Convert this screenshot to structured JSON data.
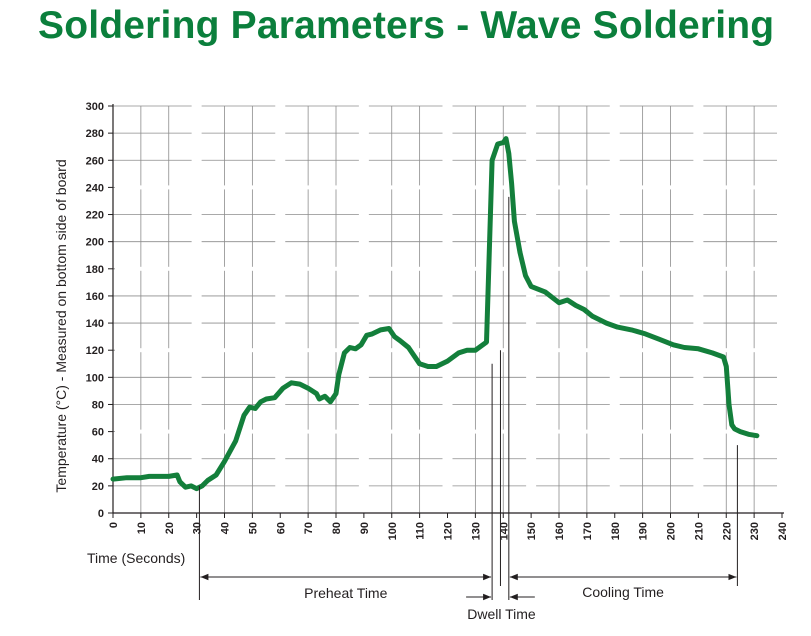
{
  "chart_data": {
    "type": "line",
    "title": "Soldering Parameters - Wave Soldering",
    "xlabel": "Time (Seconds)",
    "ylabel": "Temperature (°C) - Measured on bottom side of board",
    "xlim": [
      0,
      240
    ],
    "ylim": [
      0,
      300
    ],
    "x_ticks": [
      0,
      10,
      20,
      30,
      40,
      50,
      60,
      70,
      80,
      90,
      100,
      110,
      120,
      130,
      140,
      150,
      160,
      170,
      180,
      190,
      200,
      210,
      220,
      230,
      240
    ],
    "y_ticks": [
      0,
      20,
      40,
      60,
      80,
      100,
      120,
      140,
      160,
      180,
      200,
      220,
      240,
      260,
      280,
      300
    ],
    "grid": true,
    "series": [
      {
        "color": "#137f3b",
        "x": [
          0,
          5,
          10,
          13,
          16,
          20,
          23,
          24,
          26,
          28,
          30,
          32,
          34,
          37,
          40,
          44,
          47,
          49,
          51,
          53,
          55,
          58,
          61,
          64,
          67,
          70,
          73,
          74,
          76,
          78,
          80,
          81,
          83,
          85,
          87,
          89,
          91,
          93,
          96,
          99,
          101,
          103,
          106,
          110,
          113,
          116,
          120,
          124,
          127,
          130,
          134,
          136,
          138,
          140,
          141,
          142,
          143,
          144,
          146,
          148,
          150,
          155,
          160,
          163,
          166,
          169,
          172,
          177,
          181,
          186,
          191,
          196,
          201,
          205,
          210,
          215,
          219,
          220,
          221,
          222,
          223,
          225,
          228,
          231
        ],
        "y": [
          25,
          26,
          26,
          27,
          27,
          27,
          28,
          23,
          19,
          20,
          18,
          20,
          24,
          28,
          38,
          53,
          72,
          78,
          77,
          82,
          84,
          85,
          92,
          96,
          95,
          92,
          88,
          84,
          86,
          82,
          88,
          102,
          118,
          122,
          121,
          124,
          131,
          132,
          135,
          136,
          130,
          127,
          122,
          110,
          108,
          108,
          112,
          118,
          120,
          120,
          126,
          260,
          272,
          273,
          276,
          265,
          243,
          215,
          192,
          175,
          167,
          163,
          155,
          157,
          153,
          150,
          145,
          140,
          137,
          135,
          132,
          128,
          124,
          122,
          121,
          118,
          115,
          108,
          80,
          65,
          62,
          60,
          58,
          57
        ]
      }
    ],
    "annotations": [
      {
        "text": "Preheat Time",
        "from": 31,
        "to": 136
      },
      {
        "text": "Dwell Time",
        "from": 136,
        "to": 142
      },
      {
        "text": "Cooling Time",
        "from": 142,
        "to": 224
      }
    ]
  }
}
